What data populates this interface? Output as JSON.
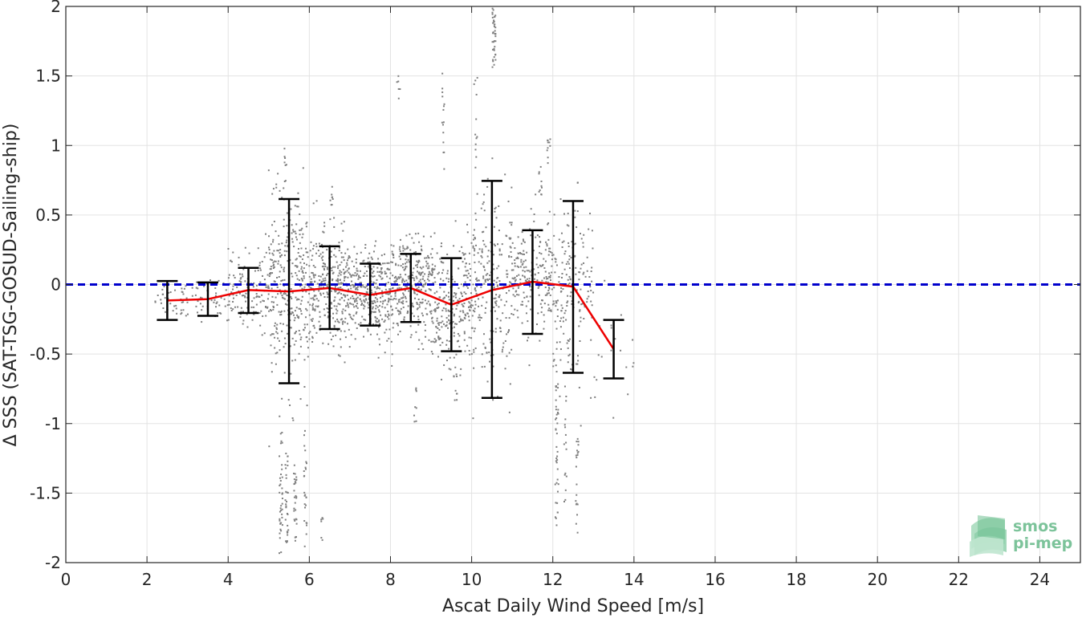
{
  "chart_data": {
    "type": "scatter",
    "title": "",
    "xlabel": "Ascat Daily Wind Speed [m/s]",
    "ylabel": "Δ SSS (SAT-TSG-GOSUD-Sailing-ship)",
    "xlim": [
      0,
      25
    ],
    "ylim": [
      -2,
      2
    ],
    "xticks": [
      0,
      2,
      4,
      6,
      8,
      10,
      12,
      14,
      16,
      18,
      20,
      22,
      24
    ],
    "xtick_labels": [
      "0",
      "2",
      "4",
      "6",
      "8",
      "10",
      "12",
      "14",
      "16",
      "18",
      "20",
      "22",
      "24"
    ],
    "yticks": [
      -2,
      -1.5,
      -1,
      -0.5,
      0,
      0.5,
      1,
      1.5,
      2
    ],
    "ytick_labels": [
      "-2",
      "-1.5",
      "-1",
      "-0.5",
      "0",
      "0.5",
      "1",
      "1.5",
      "2"
    ],
    "grid": true,
    "reference_line": {
      "y": 0,
      "color": "#0000cc",
      "style": "dashed"
    },
    "binned_mean": {
      "color": "#ee0000",
      "x": [
        2.5,
        3.5,
        4.5,
        5.5,
        6.5,
        7.5,
        8.5,
        9.5,
        10.5,
        11.5,
        12.5,
        13.5
      ],
      "y": [
        -0.115,
        -0.105,
        -0.04,
        -0.05,
        -0.025,
        -0.075,
        -0.025,
        -0.145,
        -0.04,
        0.02,
        -0.015,
        -0.465
      ],
      "err_low": [
        -0.255,
        -0.225,
        -0.205,
        -0.71,
        -0.32,
        -0.295,
        -0.27,
        -0.48,
        -0.815,
        -0.355,
        -0.635,
        -0.675
      ],
      "err_high": [
        0.025,
        0.015,
        0.12,
        0.615,
        0.275,
        0.15,
        0.22,
        0.19,
        0.745,
        0.39,
        0.6,
        -0.255
      ]
    },
    "scatter_color": "#7f7f7f",
    "scatter_clusters": [
      {
        "x_range": [
          2.2,
          3.0
        ],
        "mean": -0.1,
        "sd": 0.07,
        "count": 40
      },
      {
        "x_range": [
          3.0,
          4.0
        ],
        "mean": -0.1,
        "sd": 0.07,
        "count": 50
      },
      {
        "x_range": [
          4.0,
          5.0
        ],
        "mean": -0.04,
        "sd": 0.14,
        "count": 130
      },
      {
        "x_range": [
          5.0,
          6.0
        ],
        "mean": -0.05,
        "sd": 0.32,
        "count": 320
      },
      {
        "x_range": [
          6.0,
          7.0
        ],
        "mean": -0.03,
        "sd": 0.2,
        "count": 320
      },
      {
        "x_range": [
          7.0,
          8.0
        ],
        "mean": -0.07,
        "sd": 0.16,
        "count": 300
      },
      {
        "x_range": [
          8.0,
          9.0
        ],
        "mean": -0.02,
        "sd": 0.17,
        "count": 300
      },
      {
        "x_range": [
          9.0,
          10.0
        ],
        "mean": -0.14,
        "sd": 0.22,
        "count": 260
      },
      {
        "x_range": [
          10.0,
          11.0
        ],
        "mean": -0.04,
        "sd": 0.38,
        "count": 240
      },
      {
        "x_range": [
          11.0,
          12.0
        ],
        "mean": 0.02,
        "sd": 0.2,
        "count": 200
      },
      {
        "x_range": [
          12.0,
          13.0
        ],
        "mean": -0.02,
        "sd": 0.3,
        "count": 180
      },
      {
        "x_range": [
          13.0,
          14.0
        ],
        "mean": -0.45,
        "sd": 0.2,
        "count": 20
      }
    ],
    "outlier_streaks": [
      {
        "x": 5.3,
        "y_range": [
          -1.95,
          -0.9
        ],
        "count": 40
      },
      {
        "x": 5.45,
        "y_range": [
          -1.9,
          -1.2
        ],
        "count": 30
      },
      {
        "x": 5.65,
        "y_range": [
          -1.85,
          -1.3
        ],
        "count": 30
      },
      {
        "x": 5.9,
        "y_range": [
          -1.9,
          -1.0
        ],
        "count": 25
      },
      {
        "x": 6.3,
        "y_range": [
          -1.85,
          -1.65
        ],
        "count": 6
      },
      {
        "x": 5.4,
        "y_range": [
          0.6,
          1.0
        ],
        "count": 10
      },
      {
        "x": 6.55,
        "y_range": [
          0.55,
          0.72
        ],
        "count": 8
      },
      {
        "x": 8.2,
        "y_range": [
          1.3,
          1.55
        ],
        "count": 6
      },
      {
        "x": 9.3,
        "y_range": [
          0.8,
          1.55
        ],
        "count": 15
      },
      {
        "x": 10.1,
        "y_range": [
          0.6,
          1.5
        ],
        "count": 12
      },
      {
        "x": 10.55,
        "y_range": [
          1.55,
          2.0
        ],
        "count": 40
      },
      {
        "x": 11.9,
        "y_range": [
          0.85,
          1.1
        ],
        "count": 10
      },
      {
        "x": 11.7,
        "y_range": [
          0.55,
          0.85
        ],
        "count": 10
      },
      {
        "x": 12.1,
        "y_range": [
          -1.75,
          -0.7
        ],
        "count": 40
      },
      {
        "x": 12.6,
        "y_range": [
          -1.8,
          -1.1
        ],
        "count": 20
      },
      {
        "x": 12.3,
        "y_range": [
          -1.6,
          -0.8
        ],
        "count": 15
      },
      {
        "x": 8.6,
        "y_range": [
          -1.0,
          -0.7
        ],
        "count": 8
      },
      {
        "x": 9.6,
        "y_range": [
          -0.9,
          -0.55
        ],
        "count": 8
      }
    ]
  },
  "logo": {
    "line1": "smos",
    "line2": "pi-mep"
  }
}
